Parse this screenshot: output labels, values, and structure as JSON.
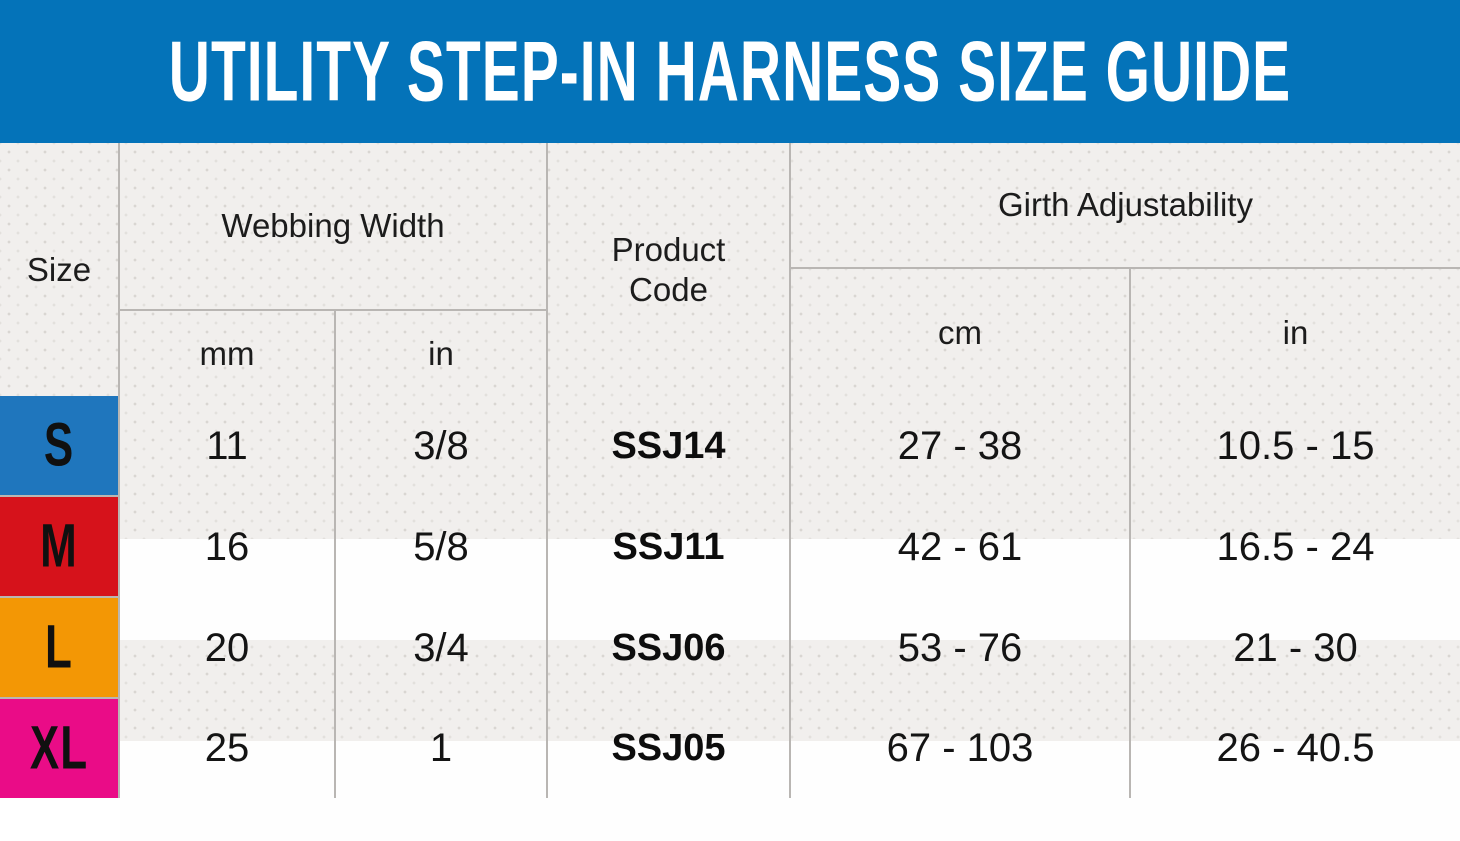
{
  "title": "UTILITY STEP-IN HARNESS SIZE GUIDE",
  "colors": {
    "banner_blue": "#0473b9",
    "size_s_blue": "#1f76bd",
    "size_m_red": "#d6121b",
    "size_l_orange": "#f39705",
    "size_xl_pink": "#ea0c87"
  },
  "chart_data": {
    "type": "table",
    "title": "UTILITY STEP-IN HARNESS SIZE GUIDE",
    "header": {
      "size": "Size",
      "webbing_width": "Webbing Width",
      "webbing_units": [
        "mm",
        "in"
      ],
      "product_code": "Product Code",
      "girth": "Girth Adjustability",
      "girth_units": [
        "cm",
        "in"
      ]
    },
    "rows": [
      {
        "size": "S",
        "color": "#1f76bd",
        "webbing_mm": "11",
        "webbing_in": "3/8",
        "product_code": "SSJ14",
        "girth_cm": "27 - 38",
        "girth_in": "10.5 - 15"
      },
      {
        "size": "M",
        "color": "#d6121b",
        "webbing_mm": "16",
        "webbing_in": "5/8",
        "product_code": "SSJ11",
        "girth_cm": "42 - 61",
        "girth_in": "16.5 - 24"
      },
      {
        "size": "L",
        "color": "#f39705",
        "webbing_mm": "20",
        "webbing_in": "3/4",
        "product_code": "SSJ06",
        "girth_cm": "53 - 76",
        "girth_in": "21 - 30"
      },
      {
        "size": "XL",
        "color": "#ea0c87",
        "webbing_mm": "25",
        "webbing_in": "1",
        "product_code": "SSJ05",
        "girth_cm": "67 - 103",
        "girth_in": "26 - 40.5"
      }
    ]
  }
}
